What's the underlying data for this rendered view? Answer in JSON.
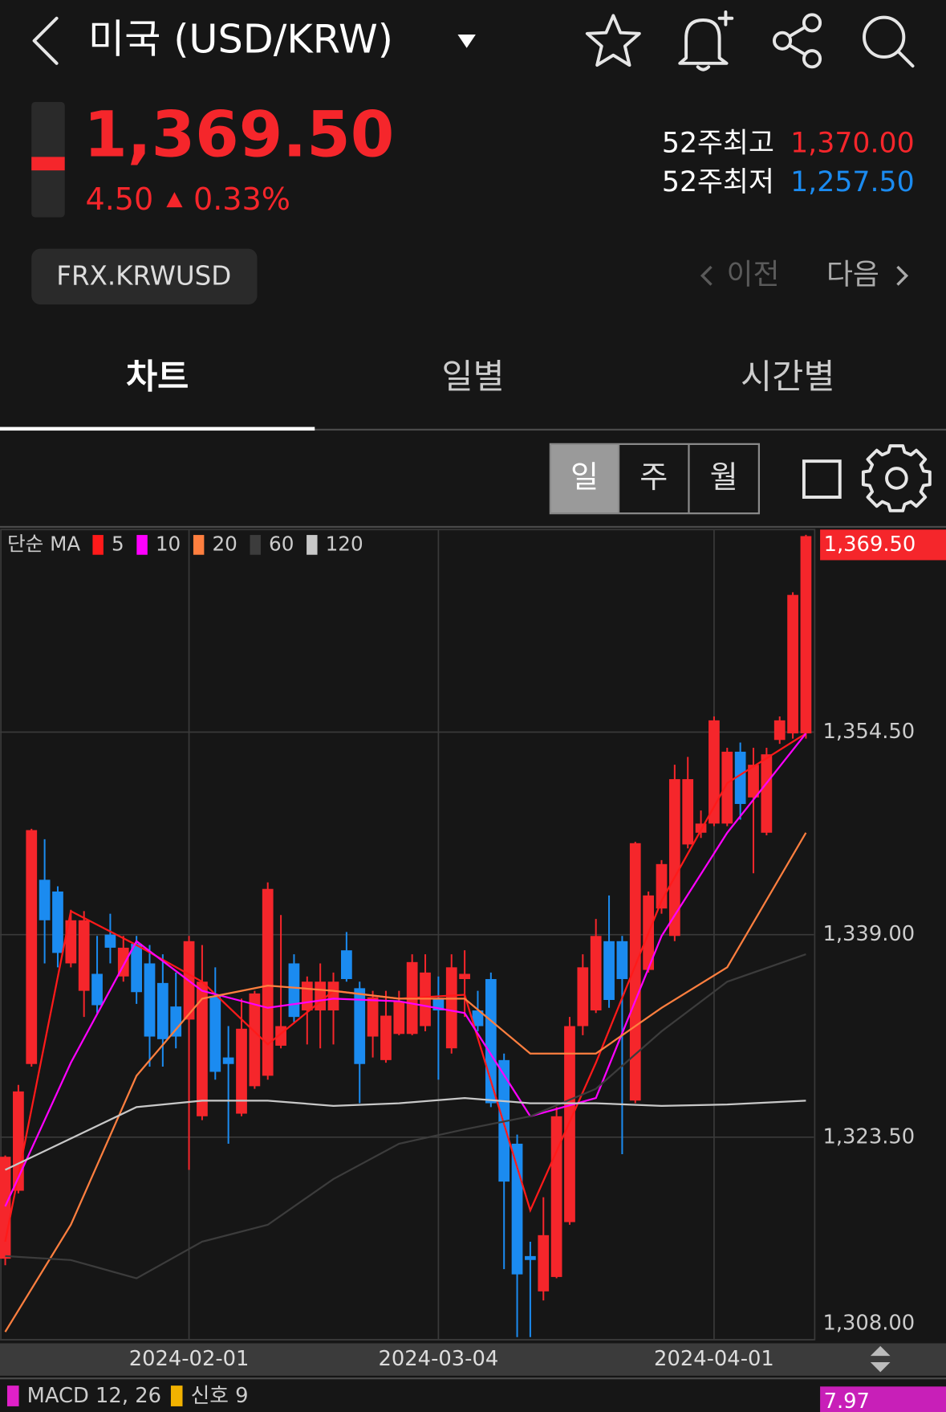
{
  "header": {
    "title": "미국 (USD/KRW)"
  },
  "quote": {
    "price": "1,369.50",
    "change": "4.50",
    "change_pct": "0.33%",
    "high_52w_label": "52주최고",
    "high_52w": "1,370.00",
    "low_52w_label": "52주최저",
    "low_52w": "1,257.50"
  },
  "symbol": "FRX.KRWUSD",
  "nav": {
    "prev": "이전",
    "next": "다음"
  },
  "tabs": [
    "차트",
    "일별",
    "시간별"
  ],
  "periods": [
    "일",
    "주",
    "월"
  ],
  "chart_data": {
    "type": "candlestick",
    "categories": [
      null,
      null,
      null,
      null,
      null,
      null,
      null,
      null,
      null,
      null,
      null,
      null,
      null,
      null,
      "2024-02-01",
      null,
      null,
      null,
      null,
      null,
      null,
      null,
      null,
      null,
      null,
      null,
      null,
      null,
      null,
      null,
      null,
      null,
      null,
      "2024-03-04",
      null,
      null,
      null,
      null,
      null,
      null,
      null,
      null,
      null,
      null,
      null,
      null,
      null,
      null,
      null,
      null,
      null,
      null,
      null,
      null,
      "2024-04-01",
      null,
      null,
      null,
      null,
      null,
      null,
      null
    ],
    "open": [
      1314.2,
      1319.4,
      1329.1,
      1343.2,
      1342.3,
      1336.8,
      1334.7,
      1336.0,
      1339.0,
      1335.8,
      1338.3,
      1336.8,
      1335.3,
      1333.5,
      1332.5,
      1325.1,
      1334.3,
      1329.6,
      1325.3,
      1327.4,
      1328.2,
      1330.5,
      1336.8,
      1333.2,
      1333.2,
      1333.2,
      1337.8,
      1334.9,
      1331.2,
      1329.4,
      1331.4,
      1331.4,
      1332.0,
      1334.1,
      1330.3,
      1335.6,
      1333.2,
      1335.6,
      1329.4,
      1323.0,
      1314.4,
      1311.7,
      1312.8,
      1317.0,
      1332.0,
      1333.2,
      1338.5,
      1338.5,
      1326.3,
      1336.3,
      1341.0,
      1338.9,
      1345.9,
      1346.8,
      1347.5,
      1347.5,
      1353.0,
      1349.5,
      1346.8,
      1353.9,
      1354.4,
      1354.4
    ],
    "high": [
      1322.1,
      1327.5,
      1347.1,
      1346.3,
      1342.7,
      1340.9,
      1340.8,
      1338.9,
      1340.6,
      1338.9,
      1338.9,
      1338.2,
      1337.5,
      1336.1,
      1338.9,
      1338.2,
      1336.5,
      1332.0,
      1334.1,
      1334.7,
      1343.0,
      1340.5,
      1337.5,
      1335.8,
      1336.8,
      1336.1,
      1339.2,
      1335.4,
      1334.7,
      1334.7,
      1334.7,
      1337.5,
      1337.5,
      1335.8,
      1337.5,
      1337.8,
      1334.7,
      1336.1,
      1329.9,
      1323.7,
      1315.5,
      1318.9,
      1325.8,
      1332.7,
      1337.5,
      1340.2,
      1342.0,
      1338.9,
      1346.1,
      1342.3,
      1344.7,
      1352.0,
      1352.6,
      1348.5,
      1355.7,
      1353.3,
      1353.7,
      1353.3,
      1353.3,
      1355.7,
      1365.2,
      1369.6
    ],
    "low": [
      1313.7,
      1319.2,
      1328.9,
      1336.8,
      1336.5,
      1336.5,
      1332.7,
      1333.0,
      1336.8,
      1335.4,
      1333.7,
      1328.9,
      1328.9,
      1330.3,
      1321.0,
      1324.8,
      1327.9,
      1323.0,
      1325.1,
      1327.2,
      1327.9,
      1330.3,
      1332.3,
      1330.6,
      1330.3,
      1330.6,
      1335.4,
      1326.1,
      1329.6,
      1329.2,
      1331.3,
      1331.3,
      1331.6,
      1327.9,
      1329.9,
      1332.7,
      1331.6,
      1325.8,
      1313.4,
      1308.2,
      1308.2,
      1311.0,
      1312.7,
      1316.8,
      1331.3,
      1333.0,
      1333.4,
      1322.2,
      1326.1,
      1336.1,
      1340.6,
      1338.5,
      1345.6,
      1346.4,
      1347.3,
      1347.3,
      1347.8,
      1343.7,
      1346.6,
      1353.6,
      1354.0,
      1354.0
    ],
    "close": [
      1322.0,
      1327.0,
      1347.0,
      1340.1,
      1337.6,
      1340.1,
      1340.1,
      1333.6,
      1338.0,
      1338.0,
      1334.6,
      1331.2,
      1331.0,
      1331.2,
      1338.5,
      1335.4,
      1328.5,
      1329.1,
      1331.8,
      1334.5,
      1342.5,
      1332.0,
      1332.7,
      1335.4,
      1335.4,
      1335.4,
      1335.6,
      1329.1,
      1334.2,
      1332.8,
      1333.9,
      1336.9,
      1336.1,
      1333.2,
      1336.5,
      1336.0,
      1332.0,
      1326.1,
      1320.1,
      1313.0,
      1314.1,
      1316.0,
      1325.1,
      1332.0,
      1336.5,
      1338.9,
      1334.0,
      1335.6,
      1346.0,
      1342.0,
      1344.4,
      1350.9,
      1350.9,
      1347.5,
      1355.4,
      1353.0,
      1349.0,
      1352.0,
      1352.8,
      1355.4,
      1365.0,
      1369.5
    ],
    "up_color": "#f5262b",
    "down_color": "#1b8bf0",
    "ylim": [
      1308,
      1370
    ],
    "yticks": [
      {
        "value": 1308,
        "label": "1,308.00"
      },
      {
        "value": 1323.5,
        "label": "1,323.50"
      },
      {
        "value": 1339,
        "label": "1,339.00"
      },
      {
        "value": 1354.5,
        "label": "1,354.50"
      }
    ],
    "grid": true,
    "price_tag": {
      "value": 1369.5,
      "label": "1,369.50"
    },
    "ma": {
      "label": "단순 MA",
      "x": [
        0,
        5,
        10,
        15,
        20,
        25,
        30,
        35,
        40,
        45,
        50,
        55,
        61
      ],
      "series": [
        {
          "name": "5",
          "color": "#ff1a1a",
          "values": [
            1315.5,
            1340.8,
            1338.2,
            1335.4,
            1330.6,
            1334.7,
            1334.1,
            1334.4,
            1317.9,
            1329.2,
            1341.6,
            1350.6,
            1354.4
          ]
        },
        {
          "name": "10",
          "color": "#ff00ff",
          "values": [
            1318.2,
            1329.2,
            1338.5,
            1334.7,
            1333.4,
            1334.1,
            1333.9,
            1333.0,
            1325.1,
            1326.5,
            1338.9,
            1346.8,
            1354.4
          ]
        },
        {
          "name": "20",
          "color": "#ff7f3f",
          "values": [
            1308.6,
            1316.8,
            1328.2,
            1334.1,
            1335.1,
            1334.7,
            1334.1,
            1334.1,
            1329.9,
            1329.9,
            1333.4,
            1336.5,
            1346.8
          ]
        },
        {
          "name": "60",
          "color": "#3c3c3c",
          "values": [
            1314.4,
            1314.1,
            1312.7,
            1315.5,
            1316.8,
            1320.3,
            1323.0,
            1324.1,
            1325.1,
            1327.2,
            1331.6,
            1335.4,
            1337.5
          ]
        },
        {
          "name": "120",
          "color": "#c8c8c8",
          "values": [
            1321.0,
            1323.4,
            1325.8,
            1326.3,
            1326.3,
            1325.9,
            1326.1,
            1326.5,
            1326.1,
            1326.1,
            1325.9,
            1326.0,
            1326.3
          ]
        }
      ]
    },
    "macd": {
      "title": "MACD 12, 26",
      "signal": "신호 9",
      "last": {
        "value": 7.97,
        "label": "7.97"
      }
    }
  }
}
